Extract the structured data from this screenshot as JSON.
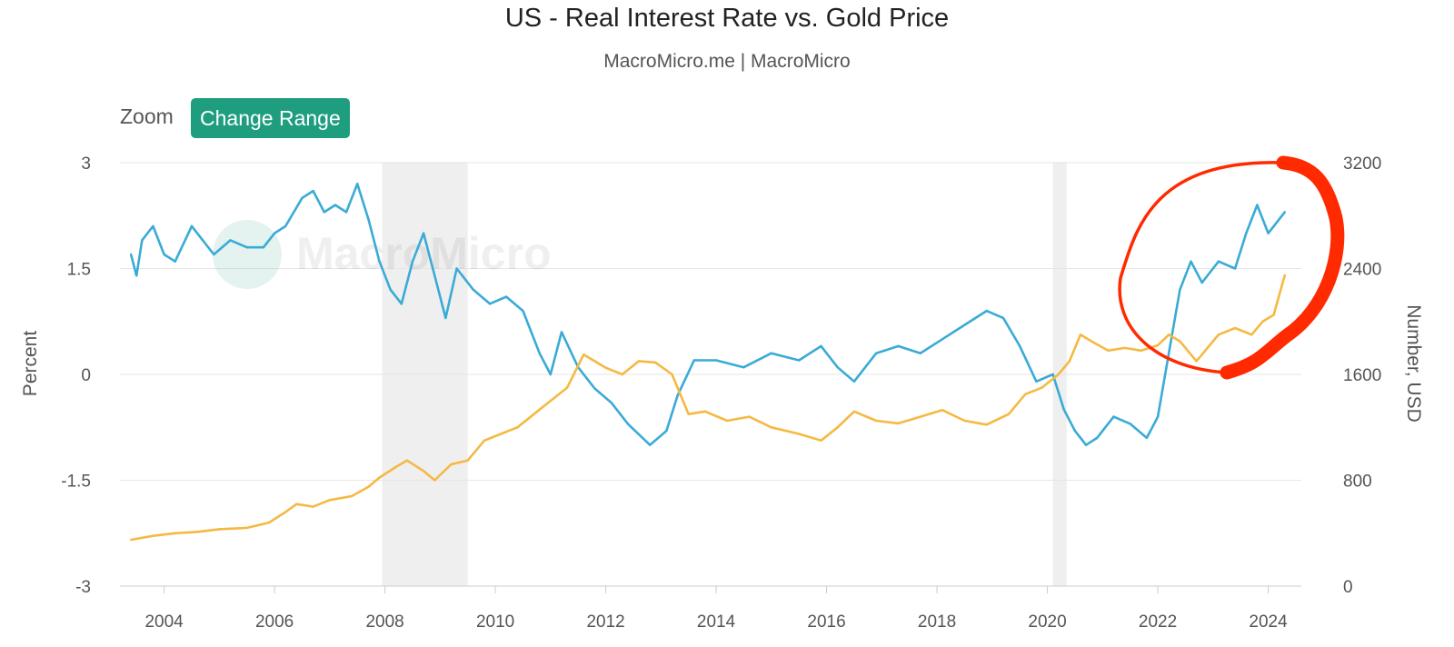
{
  "header": {
    "title": "US - Real Interest Rate vs. Gold Price",
    "subtitle": "MacroMicro.me | MacroMicro"
  },
  "toolbar": {
    "zoom_label": "Zoom",
    "range_button_label": "Change Range"
  },
  "watermark": "MacroMicro",
  "colors": {
    "rate": "#3aabd6",
    "gold": "#f5b943",
    "recession": "#efefef",
    "grid": "#e6e6e6",
    "annotation": "#ff2a00",
    "button": "#1e9e7e"
  },
  "chart_data": {
    "type": "line",
    "title": "US - Real Interest Rate vs. Gold Price",
    "subtitle": "MacroMicro.me | MacroMicro",
    "x_range": [
      2003.2,
      2024.6
    ],
    "x_ticks": [
      "2004",
      "2006",
      "2008",
      "2010",
      "2012",
      "2014",
      "2016",
      "2018",
      "2020",
      "2022",
      "2024"
    ],
    "left_axis": {
      "label": "Percent",
      "range": [
        -3,
        3
      ],
      "ticks": [
        "3",
        "1.5",
        "0",
        "-1.5",
        "-3"
      ]
    },
    "right_axis": {
      "label": "Number, USD",
      "range": [
        0,
        3200
      ],
      "ticks": [
        "3200",
        "2400",
        "1600",
        "800",
        "0"
      ]
    },
    "recession_bands": [
      [
        2007.95,
        2009.5
      ],
      [
        2020.1,
        2020.35
      ]
    ],
    "grid": true,
    "series": [
      {
        "axis": "left",
        "color": "#3aabd6",
        "x": [
          2003.4,
          2003.5,
          2003.6,
          2003.8,
          2004.0,
          2004.2,
          2004.5,
          2004.7,
          2004.9,
          2005.2,
          2005.5,
          2005.8,
          2006.0,
          2006.2,
          2006.5,
          2006.7,
          2006.9,
          2007.1,
          2007.3,
          2007.5,
          2007.7,
          2007.9,
          2008.1,
          2008.3,
          2008.5,
          2008.7,
          2008.9,
          2009.1,
          2009.3,
          2009.6,
          2009.9,
          2010.2,
          2010.5,
          2010.8,
          2011.0,
          2011.2,
          2011.5,
          2011.8,
          2012.1,
          2012.4,
          2012.8,
          2013.1,
          2013.3,
          2013.6,
          2014.0,
          2014.5,
          2015.0,
          2015.5,
          2015.9,
          2016.2,
          2016.5,
          2016.9,
          2017.3,
          2017.7,
          2018.1,
          2018.5,
          2018.9,
          2019.2,
          2019.5,
          2019.8,
          2020.1,
          2020.3,
          2020.5,
          2020.7,
          2020.9,
          2021.2,
          2021.5,
          2021.8,
          2022.0,
          2022.2,
          2022.4,
          2022.6,
          2022.8,
          2023.1,
          2023.4,
          2023.6,
          2023.8,
          2024.0,
          2024.3
        ],
        "y": [
          1.7,
          1.4,
          1.9,
          2.1,
          1.7,
          1.6,
          2.1,
          1.9,
          1.7,
          1.9,
          1.8,
          1.8,
          2.0,
          2.1,
          2.5,
          2.6,
          2.3,
          2.4,
          2.3,
          2.7,
          2.2,
          1.6,
          1.2,
          1.0,
          1.6,
          2.0,
          1.4,
          0.8,
          1.5,
          1.2,
          1.0,
          1.1,
          0.9,
          0.3,
          0.0,
          0.6,
          0.1,
          -0.2,
          -0.4,
          -0.7,
          -1.0,
          -0.8,
          -0.3,
          0.2,
          0.2,
          0.1,
          0.3,
          0.2,
          0.4,
          0.1,
          -0.1,
          0.3,
          0.4,
          0.3,
          0.5,
          0.7,
          0.9,
          0.8,
          0.4,
          -0.1,
          0.0,
          -0.5,
          -0.8,
          -1.0,
          -0.9,
          -0.6,
          -0.7,
          -0.9,
          -0.6,
          0.3,
          1.2,
          1.6,
          1.3,
          1.6,
          1.5,
          2.0,
          2.4,
          2.0,
          2.3
        ]
      },
      {
        "axis": "right",
        "color": "#f5b943",
        "x": [
          2003.4,
          2003.8,
          2004.2,
          2004.6,
          2005.0,
          2005.5,
          2005.9,
          2006.2,
          2006.4,
          2006.7,
          2007.0,
          2007.4,
          2007.7,
          2007.9,
          2008.2,
          2008.4,
          2008.7,
          2008.9,
          2009.2,
          2009.5,
          2009.8,
          2010.1,
          2010.4,
          2010.7,
          2011.0,
          2011.3,
          2011.6,
          2011.8,
          2012.0,
          2012.3,
          2012.6,
          2012.9,
          2013.2,
          2013.5,
          2013.8,
          2014.2,
          2014.6,
          2015.0,
          2015.5,
          2015.9,
          2016.2,
          2016.5,
          2016.9,
          2017.3,
          2017.7,
          2018.1,
          2018.5,
          2018.9,
          2019.3,
          2019.6,
          2019.9,
          2020.2,
          2020.4,
          2020.6,
          2020.8,
          2021.1,
          2021.4,
          2021.7,
          2022.0,
          2022.2,
          2022.4,
          2022.7,
          2022.9,
          2023.1,
          2023.4,
          2023.7,
          2023.9,
          2024.1,
          2024.3
        ],
        "y": [
          350,
          380,
          400,
          410,
          430,
          440,
          480,
          560,
          620,
          600,
          650,
          680,
          750,
          820,
          900,
          950,
          870,
          800,
          920,
          950,
          1100,
          1150,
          1200,
          1300,
          1400,
          1500,
          1750,
          1700,
          1650,
          1600,
          1700,
          1690,
          1600,
          1300,
          1320,
          1250,
          1280,
          1200,
          1150,
          1100,
          1200,
          1320,
          1250,
          1230,
          1280,
          1330,
          1250,
          1220,
          1300,
          1450,
          1500,
          1600,
          1700,
          1900,
          1850,
          1780,
          1800,
          1780,
          1820,
          1900,
          1850,
          1700,
          1800,
          1900,
          1950,
          1900,
          2000,
          2050,
          2350
        ]
      }
    ]
  }
}
